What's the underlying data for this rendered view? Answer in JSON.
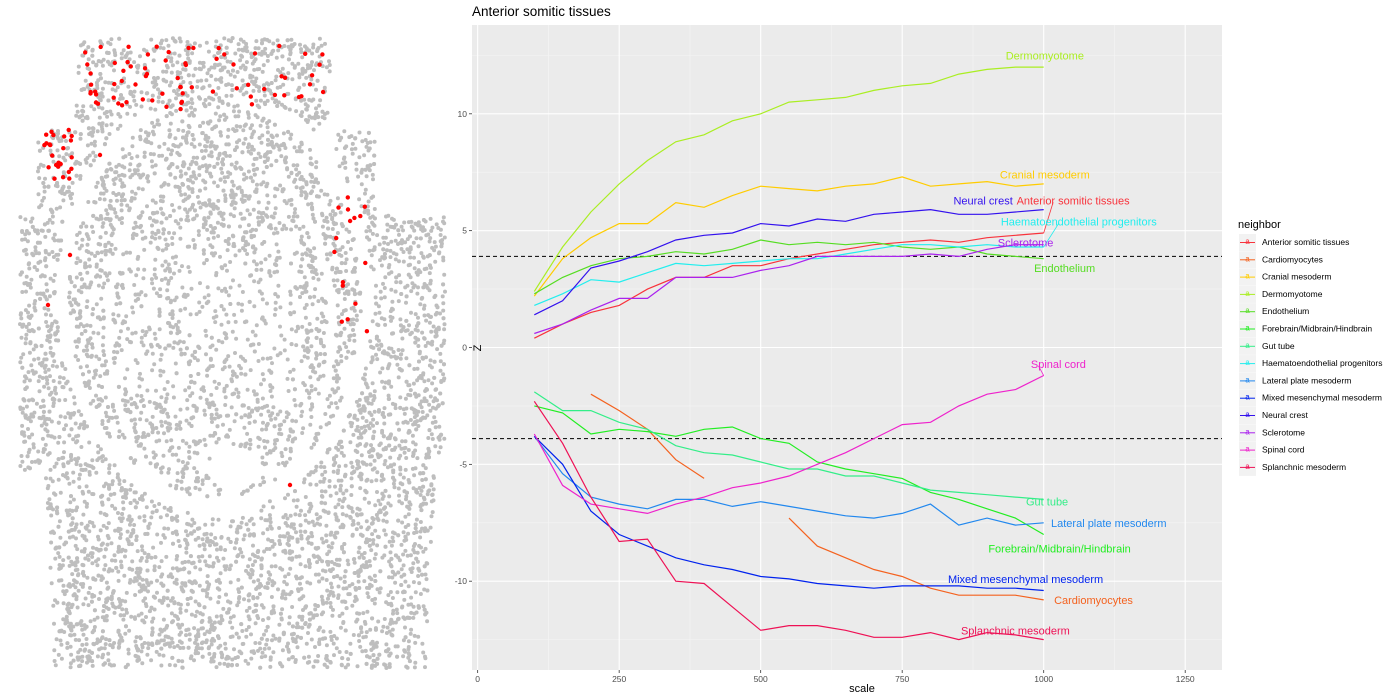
{
  "scatter_panel": {
    "background_color": "#bebebe",
    "highlight_color": "#ff0000"
  },
  "chart_data": {
    "type": "line",
    "title": "Anterior somitic tissues",
    "xlabel": "scale",
    "ylabel": "Z",
    "xlim": [
      -10,
      1315
    ],
    "ylim": [
      -13.8,
      13.8
    ],
    "xticks": [
      0,
      250,
      500,
      750,
      1000,
      1250
    ],
    "yticks": [
      10,
      5,
      0,
      -5,
      -10
    ],
    "ytick_labels": [
      "10",
      "5",
      "0",
      "-5",
      "-10"
    ],
    "reference_lines": [
      3.9,
      -3.9
    ],
    "legend_title": "neighbor",
    "legend_key_glyph": "a",
    "series": [
      {
        "name": "Anterior somitic tissues",
        "color": "#f8333c",
        "label": "Anterior somitic tissues",
        "x": [
          100,
          150,
          200,
          250,
          300,
          350,
          400,
          450,
          500,
          550,
          600,
          650,
          700,
          750,
          800,
          850,
          900,
          950,
          1000
        ],
        "y": [
          0.4,
          1.0,
          1.5,
          1.8,
          2.5,
          3.0,
          3.0,
          3.5,
          3.5,
          3.8,
          4.0,
          4.2,
          4.4,
          4.5,
          4.6,
          4.5,
          4.7,
          4.8,
          4.9
        ],
        "lx": 1052,
        "ly": 6.3,
        "ax": 1000,
        "ay": 4.9
      },
      {
        "name": "Cardiomyocytes",
        "color": "#f4621f",
        "label": "Cardiomyocytes",
        "segments": [
          {
            "x": [
              200,
              250,
              300,
              350,
              400
            ],
            "y": [
              -2.0,
              -2.7,
              -3.5,
              -4.8,
              -5.6
            ]
          },
          {
            "x": [
              550,
              600,
              650,
              700,
              750,
              800,
              850,
              900,
              950,
              1000
            ],
            "y": [
              -7.3,
              -8.5,
              -9.0,
              -9.5,
              -9.8,
              -10.3,
              -10.6,
              -10.6,
              -10.6,
              -10.8
            ]
          }
        ],
        "lx": 1088,
        "ly": -10.8
      },
      {
        "name": "Cranial mesoderm",
        "color": "#ffcc00",
        "label": "Cranial mesoderm",
        "x": [
          100,
          150,
          200,
          250,
          300,
          350,
          400,
          450,
          500,
          550,
          600,
          650,
          700,
          750,
          800,
          850,
          900,
          950,
          1000
        ],
        "y": [
          2.2,
          3.8,
          4.7,
          5.3,
          5.3,
          6.2,
          6.0,
          6.5,
          6.9,
          6.8,
          6.7,
          6.9,
          7.0,
          7.3,
          6.9,
          7.0,
          7.1,
          6.9,
          7.0
        ],
        "lx": 1002,
        "ly": 7.4
      },
      {
        "name": "Dermomyotome",
        "color": "#aaee22",
        "label": "Dermomyotome",
        "x": [
          100,
          150,
          200,
          250,
          300,
          350,
          400,
          450,
          500,
          550,
          600,
          650,
          700,
          750,
          800,
          850,
          900,
          950,
          1000
        ],
        "y": [
          2.4,
          4.3,
          5.8,
          7.0,
          8.0,
          8.8,
          9.1,
          9.7,
          10.0,
          10.5,
          10.6,
          10.7,
          11.0,
          11.2,
          11.3,
          11.7,
          11.9,
          12.0,
          12.0
        ],
        "lx": 1002,
        "ly": 12.5
      },
      {
        "name": "Endothelium",
        "color": "#55dd22",
        "label": "Endothelium",
        "x": [
          100,
          150,
          200,
          250,
          300,
          350,
          400,
          450,
          500,
          550,
          600,
          650,
          700,
          750,
          800,
          850,
          900,
          950,
          1000
        ],
        "y": [
          2.3,
          3.0,
          3.5,
          3.8,
          3.9,
          4.1,
          4.0,
          4.2,
          4.6,
          4.4,
          4.5,
          4.4,
          4.5,
          4.3,
          4.2,
          4.3,
          4.0,
          3.9,
          3.8
        ],
        "lx": 1037,
        "ly": 3.4
      },
      {
        "name": "Forebrain/Midbrain/Hindbrain",
        "color": "#22ee22",
        "label": "Forebrain/Midbrain/Hindbrain",
        "x": [
          100,
          150,
          200,
          250,
          300,
          350,
          400,
          450,
          500,
          550,
          600,
          650,
          700,
          750,
          800,
          850,
          900,
          950,
          1000
        ],
        "y": [
          -2.5,
          -2.8,
          -3.7,
          -3.5,
          -3.6,
          -3.8,
          -3.5,
          -3.4,
          -3.9,
          -4.1,
          -4.9,
          -5.2,
          -5.4,
          -5.6,
          -6.2,
          -6.5,
          -6.9,
          -7.3,
          -8.0
        ],
        "lx": 1028,
        "ly": -8.6
      },
      {
        "name": "Gut tube",
        "color": "#33ee88",
        "label": "Gut tube",
        "x": [
          100,
          150,
          200,
          250,
          300,
          350,
          400,
          450,
          500,
          550,
          600,
          650,
          700,
          750,
          800,
          850,
          900,
          950,
          1000
        ],
        "y": [
          -1.9,
          -2.7,
          -2.7,
          -3.2,
          -3.5,
          -4.2,
          -4.5,
          -4.6,
          -4.9,
          -5.2,
          -5.2,
          -5.5,
          -5.5,
          -5.8,
          -6.1,
          -6.2,
          -6.3,
          -6.4,
          -6.5
        ],
        "lx": 1006,
        "ly": -6.6
      },
      {
        "name": "Haematoendothelial progenitors",
        "color": "#22eeee",
        "label": "Haematoendothelial progenitors",
        "x": [
          100,
          150,
          200,
          250,
          300,
          350,
          400,
          450,
          500,
          550,
          600,
          650,
          700,
          750,
          800,
          850,
          900,
          950,
          1000
        ],
        "y": [
          1.8,
          2.3,
          2.9,
          2.8,
          3.2,
          3.6,
          3.5,
          3.6,
          3.7,
          3.8,
          3.8,
          4.0,
          4.2,
          4.4,
          4.4,
          4.3,
          4.4,
          4.3,
          4.3
        ],
        "lx": 1062,
        "ly": 5.4,
        "ax": 1000,
        "ay": 4.3
      },
      {
        "name": "Lateral plate mesoderm",
        "color": "#2288ee",
        "label": "Lateral plate mesoderm",
        "x": [
          100,
          150,
          200,
          250,
          300,
          350,
          400,
          450,
          500,
          550,
          600,
          650,
          700,
          750,
          800,
          850,
          900,
          950,
          1000
        ],
        "y": [
          -3.8,
          -5.4,
          -6.4,
          -6.7,
          -6.9,
          -6.5,
          -6.5,
          -6.8,
          -6.6,
          -6.8,
          -7.0,
          -7.2,
          -7.3,
          -7.1,
          -6.7,
          -7.6,
          -7.3,
          -7.6,
          -7.5
        ],
        "lx": 1115,
        "ly": -7.5
      },
      {
        "name": "Mixed mesenchymal mesoderm",
        "color": "#0022ee",
        "label": "Mixed mesenchymal mesoderm",
        "x": [
          100,
          150,
          200,
          250,
          300,
          350,
          400,
          450,
          500,
          550,
          600,
          650,
          700,
          750,
          800,
          850,
          900,
          950,
          1000
        ],
        "y": [
          -3.8,
          -5.0,
          -7.0,
          -8.0,
          -8.5,
          -9.0,
          -9.3,
          -9.5,
          -9.8,
          -9.9,
          -10.1,
          -10.2,
          -10.3,
          -10.2,
          -10.2,
          -10.2,
          -10.3,
          -10.3,
          -10.4
        ],
        "lx": 968,
        "ly": -9.9
      },
      {
        "name": "Neural crest",
        "color": "#3311ee",
        "label": "Neural crest",
        "x": [
          100,
          150,
          200,
          250,
          300,
          350,
          400,
          450,
          500,
          550,
          600,
          650,
          700,
          750,
          800,
          850,
          900,
          950,
          1000
        ],
        "y": [
          1.4,
          2.0,
          3.4,
          3.7,
          4.1,
          4.6,
          4.8,
          4.9,
          5.3,
          5.2,
          5.5,
          5.4,
          5.7,
          5.8,
          5.9,
          5.7,
          5.7,
          5.8,
          5.9
        ],
        "lx": 893,
        "ly": 6.3
      },
      {
        "name": "Sclerotome",
        "color": "#aa22ee",
        "label": "Sclerotome",
        "x": [
          100,
          150,
          200,
          250,
          300,
          350,
          400,
          450,
          500,
          550,
          600,
          650,
          700,
          750,
          800,
          850,
          900,
          950,
          1000
        ],
        "y": [
          0.6,
          1.0,
          1.6,
          2.1,
          2.1,
          3.0,
          3.0,
          3.0,
          3.3,
          3.5,
          3.9,
          3.9,
          3.9,
          3.9,
          4.0,
          3.9,
          4.2,
          4.4,
          4.4
        ],
        "lx": 968,
        "ly": 4.5
      },
      {
        "name": "Spinal cord",
        "color": "#ee22cc",
        "label": "Spinal cord",
        "x": [
          100,
          150,
          200,
          250,
          300,
          350,
          400,
          450,
          500,
          550,
          600,
          650,
          700,
          750,
          800,
          850,
          900,
          950,
          1000
        ],
        "y": [
          -3.7,
          -5.9,
          -6.7,
          -6.9,
          -7.1,
          -6.7,
          -6.4,
          -6.0,
          -5.8,
          -5.5,
          -5.0,
          -4.5,
          -3.9,
          -3.3,
          -3.2,
          -2.5,
          -2.0,
          -1.8,
          -1.2
        ],
        "lx": 1026,
        "ly": -0.7,
        "ax": 1000,
        "ay": -1.2
      },
      {
        "name": "Splanchnic mesoderm",
        "color": "#ee1155",
        "label": "Splanchnic mesoderm",
        "x": [
          100,
          150,
          200,
          250,
          300,
          350,
          400,
          450,
          500,
          550,
          600,
          650,
          700,
          750,
          800,
          850,
          900,
          950,
          1000
        ],
        "y": [
          -2.3,
          -4.1,
          -6.4,
          -8.3,
          -8.2,
          -10.0,
          -10.1,
          -11.1,
          -12.1,
          -11.9,
          -11.9,
          -12.1,
          -12.4,
          -12.4,
          -12.2,
          -12.5,
          -12.2,
          -12.3,
          -12.5
        ],
        "lx": 950,
        "ly": -12.1
      }
    ]
  }
}
